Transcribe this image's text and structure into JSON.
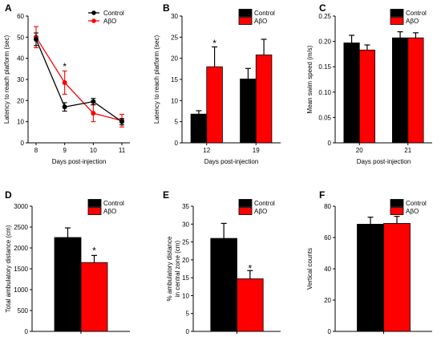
{
  "colors": {
    "control": "#000000",
    "abo": "#ff0000",
    "axis": "#000000"
  },
  "chart_data": [
    {
      "panel": "A",
      "type": "line",
      "xlabel": "Days post-injection",
      "ylabel": "Latency to reach platform (sec)",
      "x": [
        8,
        9,
        10,
        11
      ],
      "xlim": [
        8,
        11
      ],
      "ylim": [
        0,
        60
      ],
      "yticks": [
        0,
        10,
        20,
        30,
        40,
        50,
        60
      ],
      "grid": false,
      "legend": "top-right",
      "series": [
        {
          "name": "Control",
          "color": "#000000",
          "values": [
            49,
            17,
            19.5,
            10
          ],
          "errors": [
            3,
            2,
            1.5,
            1.5
          ]
        },
        {
          "name": "AβO",
          "color": "#ff0000",
          "values": [
            50,
            28.5,
            14,
            10.5
          ],
          "errors": [
            5,
            5.5,
            4,
            3
          ]
        }
      ],
      "annotations": [
        {
          "text": "*",
          "x": 9,
          "y": 36
        }
      ]
    },
    {
      "panel": "B",
      "type": "bar",
      "xlabel": "Days post-injection",
      "ylabel": "Latency to reach platform (sec)",
      "categories": [
        "12",
        "19"
      ],
      "ylim": [
        0,
        30
      ],
      "yticks": [
        0,
        5,
        10,
        15,
        20,
        25,
        30
      ],
      "grid": false,
      "legend": "top-right",
      "series": [
        {
          "name": "Control",
          "color": "#000000",
          "values": [
            6.8,
            15.1
          ],
          "errors": [
            0.8,
            2.5
          ]
        },
        {
          "name": "AβO",
          "color": "#ff0000",
          "values": [
            18,
            20.8
          ],
          "errors": [
            4.7,
            3.7
          ]
        }
      ],
      "annotations": [
        {
          "text": "*",
          "category": 0,
          "series": 1,
          "y": 23.5
        }
      ]
    },
    {
      "panel": "C",
      "type": "bar",
      "xlabel": "Days post-injection",
      "ylabel": "Mean swim speed (m/s)",
      "categories": [
        "20",
        "21"
      ],
      "ylim": [
        0,
        0.25
      ],
      "yticks": [
        "0",
        "0.05",
        "0.10",
        "0.15",
        "0.20",
        "0.25"
      ],
      "grid": false,
      "legend": "top-right",
      "series": [
        {
          "name": "Control",
          "color": "#000000",
          "values": [
            0.197,
            0.207
          ],
          "errors": [
            0.015,
            0.012
          ]
        },
        {
          "name": "AβO",
          "color": "#ff0000",
          "values": [
            0.183,
            0.207
          ],
          "errors": [
            0.01,
            0.01
          ]
        }
      ],
      "annotations": []
    },
    {
      "panel": "D",
      "type": "bar",
      "xlabel": "",
      "ylabel": "Total ambulatory distance (cm)",
      "categories": [
        ""
      ],
      "ylim": [
        0,
        3000
      ],
      "yticks": [
        0,
        500,
        1000,
        1500,
        2000,
        2500,
        3000
      ],
      "grid": false,
      "legend": "top-right",
      "series": [
        {
          "name": "Control",
          "color": "#000000",
          "values": [
            2250
          ],
          "errors": [
            230
          ]
        },
        {
          "name": "AβO",
          "color": "#ff0000",
          "values": [
            1650
          ],
          "errors": [
            170
          ]
        }
      ],
      "annotations": [
        {
          "text": "*",
          "category": 0,
          "series": 1,
          "y": 1930
        }
      ]
    },
    {
      "panel": "E",
      "type": "bar",
      "xlabel": "",
      "ylabel": "% ambulatory distance in central zone (cm)",
      "ylabel_lines": [
        "% ambulatory distance",
        "in central zone (cm)"
      ],
      "categories": [
        ""
      ],
      "ylim": [
        0,
        35
      ],
      "yticks": [
        0,
        5,
        10,
        15,
        20,
        25,
        30,
        35
      ],
      "grid": false,
      "legend": "top-right",
      "series": [
        {
          "name": "Control",
          "color": "#000000",
          "values": [
            26
          ],
          "errors": [
            4.2
          ]
        },
        {
          "name": "AβO",
          "color": "#ff0000",
          "values": [
            14.7
          ],
          "errors": [
            2.3
          ]
        }
      ],
      "annotations": [
        {
          "text": "*",
          "category": 0,
          "series": 1,
          "y": 17.6
        }
      ]
    },
    {
      "panel": "F",
      "type": "bar",
      "xlabel": "",
      "ylabel": "Vertical counts",
      "categories": [
        ""
      ],
      "ylim": [
        0,
        80
      ],
      "yticks": [
        0,
        20,
        40,
        60,
        80
      ],
      "grid": false,
      "legend": "top-right",
      "series": [
        {
          "name": "Control",
          "color": "#000000",
          "values": [
            68.5
          ],
          "errors": [
            4.5
          ]
        },
        {
          "name": "AβO",
          "color": "#ff0000",
          "values": [
            69
          ],
          "errors": [
            4.5
          ]
        }
      ],
      "annotations": []
    }
  ]
}
